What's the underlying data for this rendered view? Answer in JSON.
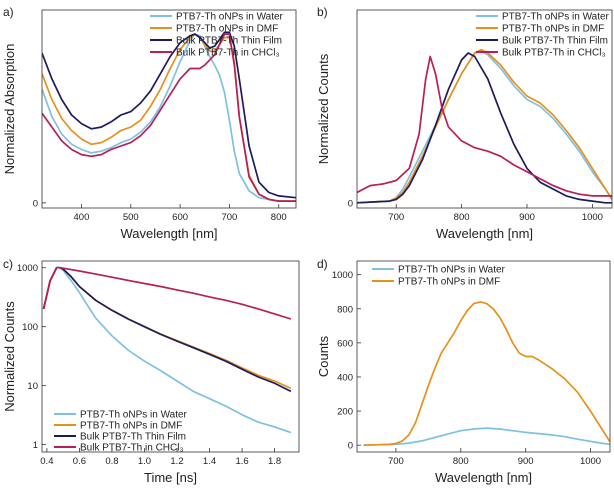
{
  "colors": {
    "water": "#7ec1e2",
    "dmf": "#e8901c",
    "film": "#1c1b5e",
    "chcl3": "#b81e57"
  },
  "chart_data": [
    {
      "panel": "a)",
      "type": "line",
      "xlabel": "Wavelength [nm]",
      "ylabel": "Normalized Absorption",
      "xlim": [
        320,
        835
      ],
      "ylim": [
        -0.03,
        1.12
      ],
      "xticks": [
        "400",
        "500",
        "600",
        "700",
        "800"
      ],
      "yticks": [
        "0"
      ],
      "legend_position": "top-right",
      "series": [
        {
          "name": "PTB7-Th oNPs in Water",
          "color_key": "water",
          "x": [
            320,
            340,
            360,
            380,
            400,
            420,
            440,
            460,
            480,
            500,
            520,
            540,
            560,
            580,
            600,
            620,
            630,
            640,
            650,
            660,
            670,
            680,
            690,
            700,
            710,
            720,
            740,
            760,
            780,
            800,
            835
          ],
          "y": [
            0.66,
            0.5,
            0.4,
            0.34,
            0.31,
            0.29,
            0.3,
            0.32,
            0.35,
            0.37,
            0.41,
            0.47,
            0.56,
            0.68,
            0.82,
            0.94,
            0.98,
            0.97,
            0.91,
            0.85,
            0.8,
            0.74,
            0.64,
            0.48,
            0.3,
            0.17,
            0.07,
            0.03,
            0.02,
            0.01,
            0.01
          ]
        },
        {
          "name": "PTB7-Th oNPs in DMF",
          "color_key": "dmf",
          "x": [
            320,
            340,
            360,
            380,
            400,
            420,
            440,
            460,
            480,
            500,
            520,
            540,
            560,
            580,
            600,
            620,
            630,
            640,
            650,
            660,
            670,
            680,
            690,
            700,
            710,
            720,
            740,
            760,
            780,
            800,
            835
          ],
          "y": [
            0.75,
            0.6,
            0.49,
            0.42,
            0.37,
            0.34,
            0.35,
            0.38,
            0.42,
            0.44,
            0.48,
            0.56,
            0.66,
            0.78,
            0.89,
            0.96,
            0.98,
            0.96,
            0.92,
            0.88,
            0.88,
            0.92,
            0.96,
            0.96,
            0.82,
            0.5,
            0.16,
            0.05,
            0.02,
            0.01,
            0.01
          ]
        },
        {
          "name": "Bulk PTB7-Th Thin Film",
          "color_key": "film",
          "x": [
            320,
            340,
            360,
            380,
            400,
            420,
            440,
            460,
            480,
            500,
            520,
            540,
            560,
            580,
            600,
            620,
            630,
            640,
            650,
            660,
            670,
            680,
            690,
            700,
            710,
            720,
            740,
            760,
            780,
            800,
            835
          ],
          "y": [
            0.87,
            0.72,
            0.6,
            0.51,
            0.46,
            0.43,
            0.44,
            0.47,
            0.51,
            0.53,
            0.58,
            0.65,
            0.75,
            0.85,
            0.93,
            0.97,
            0.98,
            0.96,
            0.93,
            0.9,
            0.91,
            0.95,
            0.99,
            0.99,
            0.91,
            0.72,
            0.33,
            0.12,
            0.06,
            0.04,
            0.03
          ]
        },
        {
          "name": "Bulk PTB7-Th in CHCl₃",
          "color_key": "chcl3",
          "x": [
            320,
            340,
            360,
            380,
            400,
            420,
            440,
            460,
            480,
            500,
            520,
            540,
            560,
            580,
            600,
            620,
            630,
            640,
            650,
            660,
            670,
            680,
            690,
            700,
            710,
            720,
            740,
            760,
            780,
            800,
            835
          ],
          "y": [
            0.52,
            0.44,
            0.36,
            0.31,
            0.28,
            0.27,
            0.28,
            0.31,
            0.33,
            0.35,
            0.39,
            0.45,
            0.54,
            0.63,
            0.72,
            0.78,
            0.78,
            0.78,
            0.8,
            0.83,
            0.86,
            0.92,
            0.98,
            0.98,
            0.8,
            0.5,
            0.15,
            0.05,
            0.02,
            0.01,
            0.01
          ]
        }
      ]
    },
    {
      "panel": "b)",
      "type": "line",
      "xlabel": "Wavelength [nm]",
      "ylabel": "Normalized Counts",
      "xlim": [
        640,
        1030
      ],
      "ylim": [
        -0.03,
        1.12
      ],
      "xticks": [
        "700",
        "800",
        "900",
        "1000"
      ],
      "yticks": [
        "0"
      ],
      "legend_position": "top-right",
      "series": [
        {
          "name": "PTB7-Th oNPs in Water",
          "color_key": "water",
          "x": [
            640,
            690,
            700,
            710,
            720,
            740,
            760,
            780,
            800,
            820,
            830,
            840,
            860,
            880,
            900,
            920,
            940,
            960,
            980,
            1000,
            1020,
            1030
          ],
          "y": [
            0.0,
            0.01,
            0.03,
            0.08,
            0.15,
            0.3,
            0.45,
            0.6,
            0.75,
            0.87,
            0.88,
            0.86,
            0.78,
            0.68,
            0.6,
            0.56,
            0.49,
            0.4,
            0.3,
            0.18,
            0.08,
            0.02
          ]
        },
        {
          "name": "PTB7-Th oNPs in DMF",
          "color_key": "dmf",
          "x": [
            640,
            690,
            700,
            710,
            720,
            740,
            760,
            780,
            800,
            820,
            830,
            840,
            860,
            880,
            900,
            920,
            940,
            960,
            980,
            1000,
            1020,
            1030
          ],
          "y": [
            0.0,
            0.01,
            0.03,
            0.06,
            0.12,
            0.27,
            0.44,
            0.6,
            0.75,
            0.87,
            0.89,
            0.87,
            0.8,
            0.7,
            0.62,
            0.58,
            0.51,
            0.42,
            0.32,
            0.2,
            0.08,
            0.02
          ]
        },
        {
          "name": "Bulk PTB7-Th Thin Film",
          "color_key": "film",
          "x": [
            640,
            690,
            700,
            710,
            720,
            740,
            760,
            780,
            800,
            810,
            820,
            840,
            860,
            880,
            900,
            920,
            940,
            960,
            980,
            1000,
            1020,
            1030
          ],
          "y": [
            0.0,
            0.01,
            0.02,
            0.05,
            0.1,
            0.25,
            0.45,
            0.66,
            0.83,
            0.87,
            0.85,
            0.72,
            0.52,
            0.34,
            0.2,
            0.12,
            0.08,
            0.04,
            0.02,
            0.01,
            0.0,
            0.0
          ]
        },
        {
          "name": "Bulk PTB7-Th in CHCl₃",
          "color_key": "chcl3",
          "x": [
            640,
            660,
            680,
            700,
            720,
            735,
            745,
            752,
            760,
            770,
            780,
            800,
            820,
            840,
            860,
            880,
            900,
            920,
            940,
            960,
            980,
            1000,
            1030
          ],
          "y": [
            0.06,
            0.1,
            0.11,
            0.13,
            0.2,
            0.4,
            0.72,
            0.85,
            0.75,
            0.55,
            0.44,
            0.36,
            0.32,
            0.3,
            0.27,
            0.22,
            0.18,
            0.14,
            0.1,
            0.07,
            0.05,
            0.04,
            0.04
          ]
        }
      ]
    },
    {
      "panel": "c)",
      "type": "line",
      "xlabel": "Time [ns]",
      "ylabel": "Normalized Counts",
      "yscale": "log",
      "xlim": [
        0.37,
        1.95
      ],
      "ylim": [
        0.75,
        1300
      ],
      "xticks": [
        "0.4",
        "0.6",
        "0.8",
        "1.0",
        "1.2",
        "1.4",
        "1.6",
        "1.8"
      ],
      "yticks": [
        "1",
        "10",
        "100",
        "1000"
      ],
      "legend_position": "bottom-left",
      "series": [
        {
          "name": "PTB7-Th oNPs in Water",
          "color_key": "water",
          "x": [
            0.38,
            0.42,
            0.46,
            0.48,
            0.5,
            0.55,
            0.6,
            0.65,
            0.7,
            0.8,
            0.9,
            1.0,
            1.1,
            1.2,
            1.3,
            1.4,
            1.5,
            1.6,
            1.7,
            1.8,
            1.9
          ],
          "y": [
            200,
            600,
            1000,
            1000,
            900,
            600,
            380,
            230,
            140,
            70,
            40,
            26,
            18,
            12,
            8,
            6,
            4.5,
            3.2,
            2.4,
            2,
            1.6
          ]
        },
        {
          "name": "PTB7-Th oNPs in DMF",
          "color_key": "dmf",
          "x": [
            0.38,
            0.42,
            0.46,
            0.48,
            0.5,
            0.55,
            0.6,
            0.7,
            0.8,
            0.9,
            1.0,
            1.1,
            1.2,
            1.3,
            1.4,
            1.5,
            1.6,
            1.7,
            1.8,
            1.9
          ],
          "y": [
            200,
            600,
            1000,
            1000,
            950,
            700,
            480,
            280,
            190,
            135,
            100,
            75,
            58,
            45,
            35,
            27,
            20,
            15,
            12,
            9
          ]
        },
        {
          "name": "Bulk PTB7-Th Thin Film",
          "color_key": "film",
          "x": [
            0.38,
            0.42,
            0.46,
            0.48,
            0.5,
            0.55,
            0.6,
            0.7,
            0.8,
            0.9,
            1.0,
            1.1,
            1.2,
            1.3,
            1.4,
            1.5,
            1.6,
            1.7,
            1.8,
            1.9
          ],
          "y": [
            200,
            600,
            1000,
            1000,
            950,
            700,
            480,
            280,
            190,
            135,
            100,
            74,
            57,
            44,
            34,
            26,
            19,
            14,
            11,
            8
          ]
        },
        {
          "name": "Bulk PTB7-Th in CHCl₃",
          "color_key": "chcl3",
          "x": [
            0.38,
            0.42,
            0.46,
            0.48,
            0.5,
            0.6,
            0.7,
            0.8,
            0.9,
            1.0,
            1.1,
            1.2,
            1.3,
            1.4,
            1.5,
            1.6,
            1.7,
            1.8,
            1.9
          ],
          "y": [
            200,
            600,
            1000,
            1000,
            980,
            880,
            780,
            690,
            610,
            540,
            480,
            420,
            370,
            320,
            280,
            240,
            200,
            165,
            135
          ]
        }
      ]
    },
    {
      "panel": "d)",
      "type": "line",
      "xlabel": "Wavelength [nm]",
      "ylabel": "Counts",
      "xlim": [
        640,
        1030
      ],
      "ylim": [
        -40,
        1080
      ],
      "xticks": [
        "700",
        "800",
        "900",
        "1000"
      ],
      "yticks": [
        "0",
        "200",
        "400",
        "600",
        "800",
        "1000"
      ],
      "legend_position": "top-left",
      "series": [
        {
          "name": "PTB7-Th oNPs in Water",
          "color_key": "water",
          "x": [
            650,
            700,
            720,
            740,
            760,
            780,
            800,
            820,
            840,
            860,
            880,
            900,
            920,
            940,
            960,
            980,
            1000,
            1020,
            1030
          ],
          "y": [
            0,
            5,
            12,
            25,
            45,
            65,
            85,
            95,
            100,
            95,
            85,
            75,
            68,
            60,
            50,
            35,
            22,
            10,
            5
          ]
        },
        {
          "name": "PTB7-Th oNPs in DMF",
          "color_key": "dmf",
          "x": [
            650,
            690,
            700,
            710,
            720,
            730,
            740,
            750,
            760,
            770,
            780,
            790,
            800,
            810,
            820,
            830,
            840,
            850,
            860,
            870,
            880,
            890,
            900,
            910,
            920,
            940,
            960,
            980,
            1000,
            1020,
            1030
          ],
          "y": [
            0,
            5,
            10,
            25,
            60,
            130,
            240,
            350,
            450,
            540,
            600,
            660,
            730,
            790,
            830,
            840,
            830,
            800,
            750,
            680,
            600,
            540,
            520,
            520,
            500,
            450,
            390,
            310,
            200,
            80,
            20
          ]
        }
      ]
    }
  ]
}
